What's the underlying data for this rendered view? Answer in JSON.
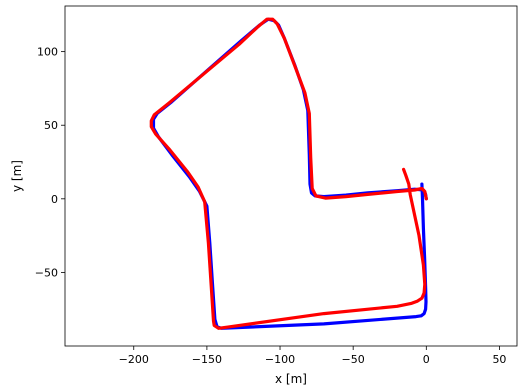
{
  "chart_data": {
    "type": "line",
    "title": "",
    "xlabel": "x [m]",
    "ylabel": "y [m]",
    "xlim": [
      -247,
      62
    ],
    "ylim": [
      -100,
      131
    ],
    "xticks": [
      -200,
      -150,
      -100,
      -50,
      0,
      50
    ],
    "yticks": [
      -50,
      0,
      50,
      100
    ],
    "xtick_labels": [
      "−200",
      "−150",
      "−100",
      "−50",
      "0",
      "50"
    ],
    "ytick_labels": [
      "−50",
      "0",
      "50",
      "100"
    ],
    "grid": false,
    "legend": "none",
    "series": [
      {
        "color": "#0000ff",
        "width": 3.2,
        "x": [
          -3,
          -2.6,
          -2,
          -1.2,
          -0.5,
          -0.2,
          -0.5,
          -1.5,
          -3.5,
          -7,
          -70,
          -140,
          -143,
          -144.5,
          -146,
          -148,
          -150,
          -155,
          -162,
          -174,
          -183,
          -186.5,
          -186.5,
          -184,
          -174,
          -150,
          -127,
          -114,
          -108,
          -104,
          -101,
          -97,
          -90,
          -84,
          -81,
          -80,
          -79.5,
          -78.5,
          -76,
          -70,
          -55,
          -40,
          -20,
          -8,
          -2,
          -0.5,
          0
        ],
        "y": [
          10,
          0,
          -20,
          -40,
          -60,
          -70,
          -75,
          -78,
          -79.5,
          -80,
          -85,
          -88,
          -87,
          -82,
          -60,
          -30,
          -5,
          5,
          15,
          30,
          42,
          48,
          54,
          58,
          66,
          87,
          107,
          118,
          122,
          121,
          118,
          109,
          91,
          74,
          60,
          30,
          10,
          4,
          2,
          1.5,
          2.5,
          4,
          5.5,
          6.5,
          6,
          3,
          0
        ]
      },
      {
        "color": "#ff0000",
        "width": 3.2,
        "x": [
          -15.5,
          -14,
          -12,
          -11,
          -5,
          -2,
          -1,
          -1.5,
          -3,
          -6,
          -10,
          -20,
          -70,
          -135,
          -142,
          -145,
          -145.5,
          -147,
          -149,
          -151.5,
          -156,
          -163,
          -176,
          -185,
          -188,
          -188,
          -186,
          -176,
          -152,
          -128,
          -115,
          -109,
          -105,
          -102,
          -97,
          -89,
          -83,
          -80,
          -79,
          -78,
          -75.5,
          -69,
          -55,
          -40,
          -20,
          -8,
          -3,
          -1,
          0
        ],
        "y": [
          20,
          16,
          10,
          3,
          -25,
          -45,
          -58,
          -64,
          -67.5,
          -69.5,
          -71,
          -73,
          -78,
          -87,
          -88,
          -86,
          -83,
          -60,
          -30,
          -2,
          8,
          18,
          34,
          44,
          49,
          53,
          57,
          65,
          85,
          105,
          117,
          122,
          122,
          119,
          109,
          88,
          72,
          58,
          28,
          7,
          2,
          0.5,
          1.5,
          3,
          5,
          6,
          7,
          5,
          0
        ]
      }
    ]
  }
}
